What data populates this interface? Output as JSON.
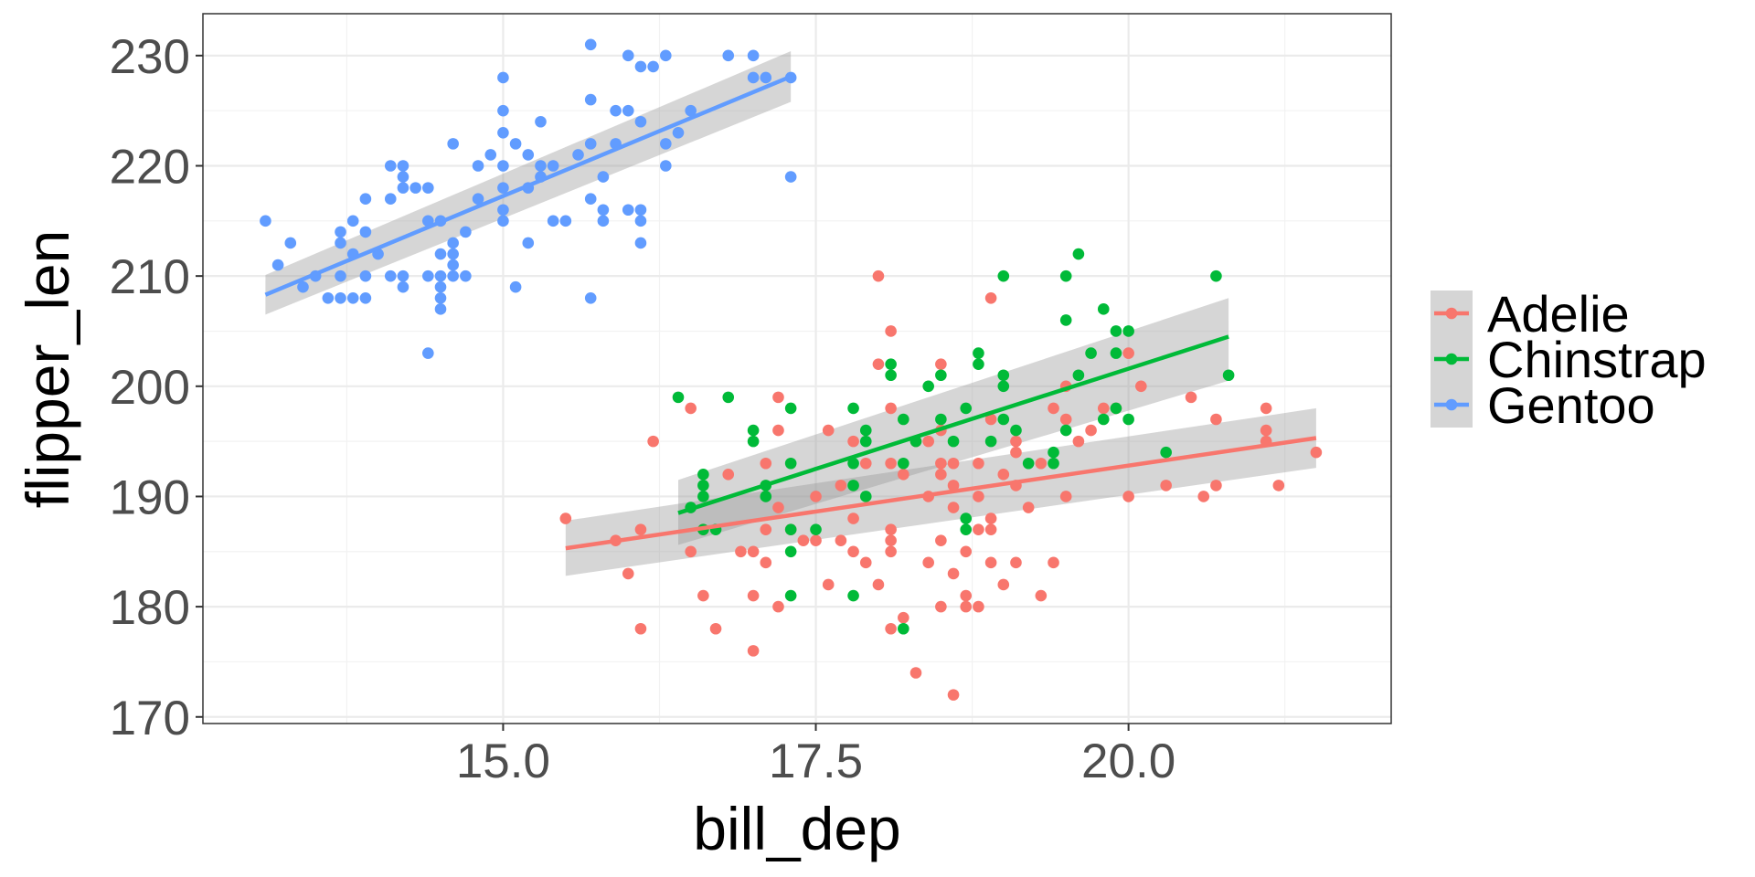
{
  "chart_data": {
    "type": "scatter",
    "title": "",
    "xlabel": "bill_dep",
    "ylabel": "flipper_len",
    "xlim": [
      12.6,
      22.1
    ],
    "ylim": [
      169.4,
      233.8
    ],
    "x_ticks": [
      15.0,
      17.5,
      20.0
    ],
    "x_tick_labels": [
      "15.0",
      "17.5",
      "20.0"
    ],
    "y_ticks": [
      170,
      180,
      190,
      200,
      210,
      220,
      230
    ],
    "y_tick_labels": [
      "170",
      "180",
      "190",
      "200",
      "210",
      "220",
      "230"
    ],
    "grid": true,
    "legend_position": "right",
    "series": [
      {
        "name": "Adelie",
        "color": "#F8766D",
        "fit": {
          "x": [
            15.5,
            21.5
          ],
          "y": [
            185.3,
            195.3
          ],
          "band_lower": [
            182.8,
            192.6
          ],
          "band_upper": [
            187.8,
            198.0
          ]
        },
        "points": [
          [
            15.5,
            188
          ],
          [
            15.9,
            186
          ],
          [
            16.0,
            183
          ],
          [
            16.1,
            187
          ],
          [
            16.1,
            178
          ],
          [
            16.2,
            195
          ],
          [
            16.5,
            198
          ],
          [
            16.5,
            185
          ],
          [
            16.6,
            187
          ],
          [
            16.6,
            181
          ],
          [
            16.7,
            178
          ],
          [
            16.8,
            192
          ],
          [
            16.9,
            185
          ],
          [
            17.0,
            185
          ],
          [
            17.0,
            181
          ],
          [
            17.0,
            176
          ],
          [
            17.1,
            193
          ],
          [
            17.1,
            187
          ],
          [
            17.1,
            184
          ],
          [
            17.2,
            199
          ],
          [
            17.2,
            196
          ],
          [
            17.2,
            189
          ],
          [
            17.2,
            180
          ],
          [
            17.3,
            187
          ],
          [
            17.4,
            186
          ],
          [
            17.5,
            190
          ],
          [
            17.5,
            186
          ],
          [
            17.6,
            196
          ],
          [
            17.6,
            182
          ],
          [
            17.7,
            191
          ],
          [
            17.7,
            186
          ],
          [
            17.8,
            195
          ],
          [
            17.8,
            188
          ],
          [
            17.8,
            185
          ],
          [
            17.9,
            193
          ],
          [
            17.9,
            184
          ],
          [
            18.0,
            210
          ],
          [
            18.0,
            202
          ],
          [
            18.0,
            182
          ],
          [
            18.1,
            205
          ],
          [
            18.1,
            198
          ],
          [
            18.1,
            193
          ],
          [
            18.1,
            187
          ],
          [
            18.1,
            186
          ],
          [
            18.1,
            185
          ],
          [
            18.1,
            178
          ],
          [
            18.2,
            192
          ],
          [
            18.2,
            179
          ],
          [
            18.3,
            195
          ],
          [
            18.3,
            174
          ],
          [
            18.4,
            195
          ],
          [
            18.4,
            190
          ],
          [
            18.4,
            184
          ],
          [
            18.5,
            202
          ],
          [
            18.5,
            196
          ],
          [
            18.5,
            193
          ],
          [
            18.5,
            192
          ],
          [
            18.5,
            186
          ],
          [
            18.5,
            180
          ],
          [
            18.6,
            193
          ],
          [
            18.6,
            191
          ],
          [
            18.6,
            189
          ],
          [
            18.6,
            183
          ],
          [
            18.6,
            172
          ],
          [
            18.7,
            185
          ],
          [
            18.7,
            181
          ],
          [
            18.7,
            180
          ],
          [
            18.8,
            193
          ],
          [
            18.8,
            190
          ],
          [
            18.8,
            187
          ],
          [
            18.8,
            180
          ],
          [
            18.9,
            208
          ],
          [
            18.9,
            197
          ],
          [
            18.9,
            188
          ],
          [
            18.9,
            187
          ],
          [
            18.9,
            184
          ],
          [
            19.0,
            192
          ],
          [
            19.0,
            182
          ],
          [
            19.1,
            195
          ],
          [
            19.1,
            194
          ],
          [
            19.1,
            191
          ],
          [
            19.1,
            184
          ],
          [
            19.2,
            189
          ],
          [
            19.3,
            193
          ],
          [
            19.3,
            181
          ],
          [
            19.4,
            198
          ],
          [
            19.4,
            184
          ],
          [
            19.5,
            200
          ],
          [
            19.5,
            197
          ],
          [
            19.5,
            190
          ],
          [
            19.6,
            195
          ],
          [
            19.7,
            196
          ],
          [
            19.8,
            198
          ],
          [
            19.9,
            198
          ],
          [
            20.0,
            203
          ],
          [
            20.0,
            190
          ],
          [
            20.1,
            200
          ],
          [
            20.3,
            191
          ],
          [
            20.5,
            199
          ],
          [
            20.6,
            190
          ],
          [
            20.7,
            197
          ],
          [
            20.7,
            191
          ],
          [
            21.1,
            198
          ],
          [
            21.1,
            196
          ],
          [
            21.1,
            195
          ],
          [
            21.2,
            191
          ],
          [
            21.5,
            194
          ]
        ]
      },
      {
        "name": "Chinstrap",
        "color": "#00BA38",
        "fit": {
          "x": [
            16.4,
            20.8
          ],
          "y": [
            188.5,
            204.5
          ],
          "band_lower": [
            185.6,
            200.5
          ],
          "band_upper": [
            191.5,
            208.0
          ]
        },
        "points": [
          [
            16.4,
            199
          ],
          [
            16.5,
            189
          ],
          [
            16.6,
            192
          ],
          [
            16.6,
            191
          ],
          [
            16.6,
            190
          ],
          [
            16.6,
            187
          ],
          [
            16.7,
            187
          ],
          [
            16.8,
            199
          ],
          [
            17.0,
            196
          ],
          [
            17.0,
            195
          ],
          [
            17.1,
            191
          ],
          [
            17.1,
            190
          ],
          [
            17.3,
            198
          ],
          [
            17.3,
            193
          ],
          [
            17.3,
            187
          ],
          [
            17.3,
            185
          ],
          [
            17.3,
            181
          ],
          [
            17.5,
            187
          ],
          [
            17.8,
            198
          ],
          [
            17.8,
            193
          ],
          [
            17.8,
            191
          ],
          [
            17.8,
            181
          ],
          [
            17.9,
            196
          ],
          [
            17.9,
            195
          ],
          [
            17.9,
            190
          ],
          [
            18.1,
            202
          ],
          [
            18.1,
            201
          ],
          [
            18.2,
            197
          ],
          [
            18.2,
            193
          ],
          [
            18.2,
            178
          ],
          [
            18.3,
            195
          ],
          [
            18.4,
            200
          ],
          [
            18.5,
            201
          ],
          [
            18.5,
            197
          ],
          [
            18.6,
            195
          ],
          [
            18.7,
            198
          ],
          [
            18.7,
            188
          ],
          [
            18.7,
            187
          ],
          [
            18.8,
            203
          ],
          [
            18.8,
            202
          ],
          [
            18.9,
            195
          ],
          [
            19.0,
            210
          ],
          [
            19.0,
            201
          ],
          [
            19.0,
            200
          ],
          [
            19.0,
            197
          ],
          [
            19.1,
            196
          ],
          [
            19.2,
            193
          ],
          [
            19.4,
            194
          ],
          [
            19.4,
            193
          ],
          [
            19.5,
            210
          ],
          [
            19.5,
            206
          ],
          [
            19.5,
            196
          ],
          [
            19.6,
            212
          ],
          [
            19.6,
            201
          ],
          [
            19.7,
            203
          ],
          [
            19.8,
            207
          ],
          [
            19.8,
            197
          ],
          [
            19.9,
            205
          ],
          [
            19.9,
            203
          ],
          [
            19.9,
            198
          ],
          [
            20.0,
            205
          ],
          [
            20.0,
            197
          ],
          [
            20.3,
            194
          ],
          [
            20.7,
            210
          ],
          [
            20.8,
            201
          ]
        ]
      },
      {
        "name": "Gentoo",
        "color": "#619CFF",
        "fit": {
          "x": [
            13.1,
            17.3
          ],
          "y": [
            208.3,
            228.1
          ],
          "band_lower": [
            206.5,
            225.8
          ],
          "band_upper": [
            210.1,
            230.4
          ]
        },
        "points": [
          [
            13.1,
            215
          ],
          [
            13.2,
            211
          ],
          [
            13.3,
            213
          ],
          [
            13.4,
            209
          ],
          [
            13.5,
            210
          ],
          [
            13.6,
            208
          ],
          [
            13.7,
            214
          ],
          [
            13.7,
            213
          ],
          [
            13.7,
            210
          ],
          [
            13.7,
            208
          ],
          [
            13.8,
            215
          ],
          [
            13.8,
            212
          ],
          [
            13.8,
            208
          ],
          [
            13.9,
            217
          ],
          [
            13.9,
            214
          ],
          [
            13.9,
            210
          ],
          [
            13.9,
            208
          ],
          [
            14.0,
            212
          ],
          [
            14.1,
            220
          ],
          [
            14.1,
            217
          ],
          [
            14.1,
            210
          ],
          [
            14.2,
            220
          ],
          [
            14.2,
            219
          ],
          [
            14.2,
            218
          ],
          [
            14.2,
            210
          ],
          [
            14.2,
            209
          ],
          [
            14.3,
            218
          ],
          [
            14.4,
            218
          ],
          [
            14.4,
            215
          ],
          [
            14.4,
            210
          ],
          [
            14.4,
            203
          ],
          [
            14.5,
            215
          ],
          [
            14.5,
            212
          ],
          [
            14.5,
            210
          ],
          [
            14.5,
            209
          ],
          [
            14.5,
            208
          ],
          [
            14.5,
            207
          ],
          [
            14.6,
            222
          ],
          [
            14.6,
            213
          ],
          [
            14.6,
            212
          ],
          [
            14.6,
            211
          ],
          [
            14.6,
            210
          ],
          [
            14.7,
            214
          ],
          [
            14.7,
            210
          ],
          [
            14.8,
            217
          ],
          [
            14.8,
            220
          ],
          [
            14.9,
            221
          ],
          [
            15.0,
            228
          ],
          [
            15.0,
            225
          ],
          [
            15.0,
            223
          ],
          [
            15.0,
            220
          ],
          [
            15.0,
            218
          ],
          [
            15.0,
            216
          ],
          [
            15.0,
            215
          ],
          [
            15.1,
            222
          ],
          [
            15.1,
            209
          ],
          [
            15.2,
            221
          ],
          [
            15.2,
            218
          ],
          [
            15.2,
            213
          ],
          [
            15.3,
            224
          ],
          [
            15.3,
            220
          ],
          [
            15.3,
            219
          ],
          [
            15.4,
            220
          ],
          [
            15.4,
            215
          ],
          [
            15.5,
            215
          ],
          [
            15.6,
            221
          ],
          [
            15.7,
            231
          ],
          [
            15.7,
            226
          ],
          [
            15.7,
            222
          ],
          [
            15.7,
            217
          ],
          [
            15.7,
            208
          ],
          [
            15.8,
            219
          ],
          [
            15.8,
            216
          ],
          [
            15.8,
            215
          ],
          [
            15.9,
            225
          ],
          [
            15.9,
            222
          ],
          [
            16.0,
            230
          ],
          [
            16.0,
            225
          ],
          [
            16.0,
            216
          ],
          [
            16.1,
            229
          ],
          [
            16.1,
            224
          ],
          [
            16.1,
            216
          ],
          [
            16.1,
            215
          ],
          [
            16.1,
            213
          ],
          [
            16.2,
            229
          ],
          [
            16.3,
            230
          ],
          [
            16.3,
            220
          ],
          [
            16.3,
            222
          ],
          [
            16.4,
            223
          ],
          [
            16.5,
            225
          ],
          [
            16.8,
            230
          ],
          [
            17.0,
            230
          ],
          [
            17.0,
            228
          ],
          [
            17.1,
            228
          ],
          [
            17.3,
            228
          ],
          [
            17.3,
            219
          ]
        ]
      }
    ]
  }
}
